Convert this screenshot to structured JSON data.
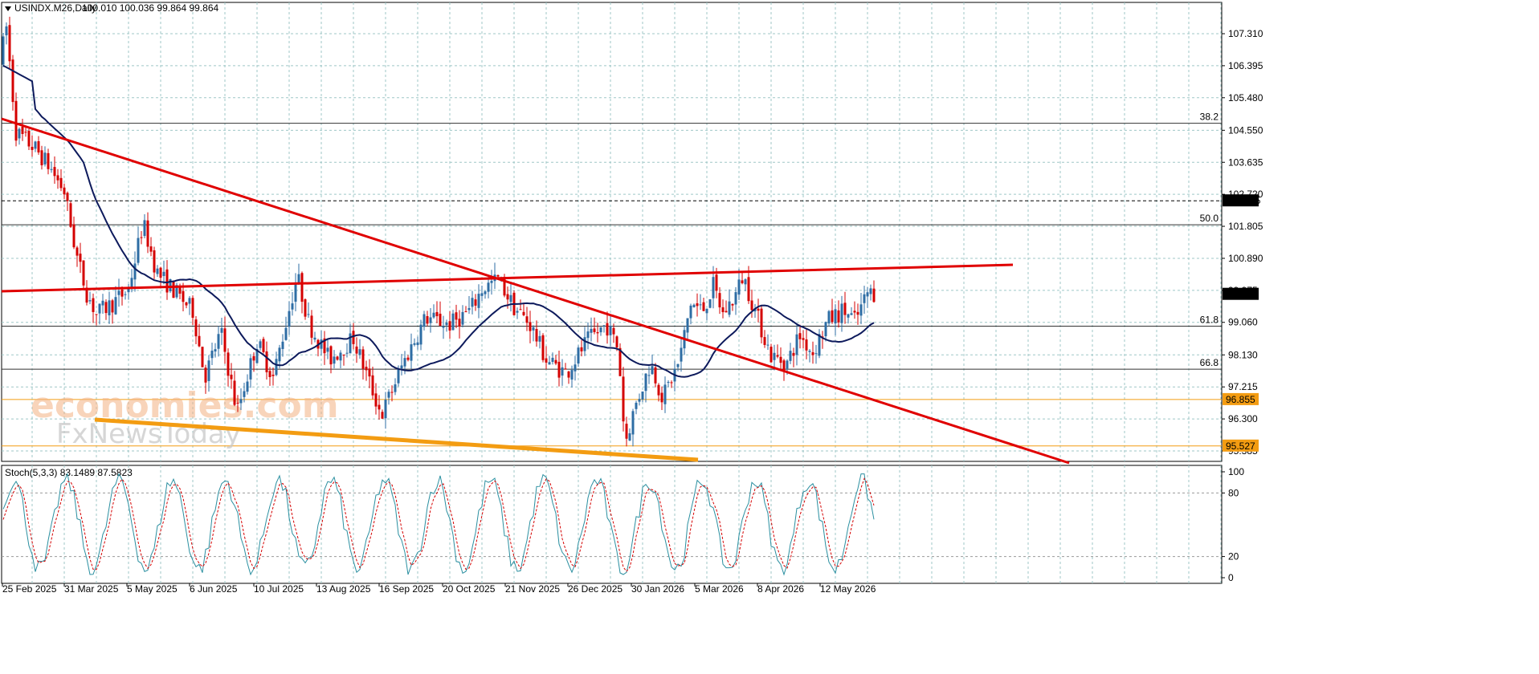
{
  "header": {
    "symbol": "USINDX.M26,Daily",
    "ohlc": "100.010 100.036 99.864 99.864"
  },
  "price_axis": {
    "labels": [
      "107.310",
      "106.395",
      "105.480",
      "104.550",
      "103.635",
      "102.720",
      "101.805",
      "100.890",
      "99.975",
      "99.060",
      "98.130",
      "97.215",
      "96.300",
      "95.385"
    ],
    "ymin": 95.385,
    "ymax": 107.31
  },
  "date_axis": {
    "labels": [
      "25 Feb 2025",
      "31 Mar 2025",
      "5 May 2025",
      "6 Jun 2025",
      "10 Jul 2025",
      "13 Aug 2025",
      "16 Sep 2025",
      "20 Oct 2025",
      "21 Nov 2025",
      "26 Dec 2025",
      "30 Jan 2026",
      "5 Mar 2026",
      "8 Apr 2026",
      "12 May 2026"
    ]
  },
  "fib_levels": [
    {
      "label": "38.2",
      "price": 104.75
    },
    {
      "label": "50.0",
      "price": 101.85
    },
    {
      "label": "61.8",
      "price": 98.95
    },
    {
      "label": "66.8",
      "price": 97.72
    }
  ],
  "price_tags": [
    {
      "label": "102.535",
      "price": 102.535,
      "style": "black"
    },
    {
      "label": "99.864",
      "price": 99.864,
      "style": "black"
    },
    {
      "label": "96.855",
      "price": 96.855,
      "style": "orange"
    },
    {
      "label": "95.527",
      "price": 95.527,
      "style": "orange"
    }
  ],
  "stochastic": {
    "title": "Stoch(5,3,3) 83.1489 87.5823",
    "levels": [
      "100",
      "80",
      "20",
      "0"
    ]
  },
  "watermark": {
    "line1": "economies.com",
    "line2": "FxNewsToday"
  },
  "colors": {
    "bull_candle": "#2e6da4",
    "bear_candle": "#d40000",
    "ma_line": "#0d1a5c",
    "trendline": "#e00000",
    "support_line": "#f39c12",
    "grid": "#9fc7c7",
    "stoch_main": "#2a8fa0",
    "stoch_signal": "#d40000"
  }
}
